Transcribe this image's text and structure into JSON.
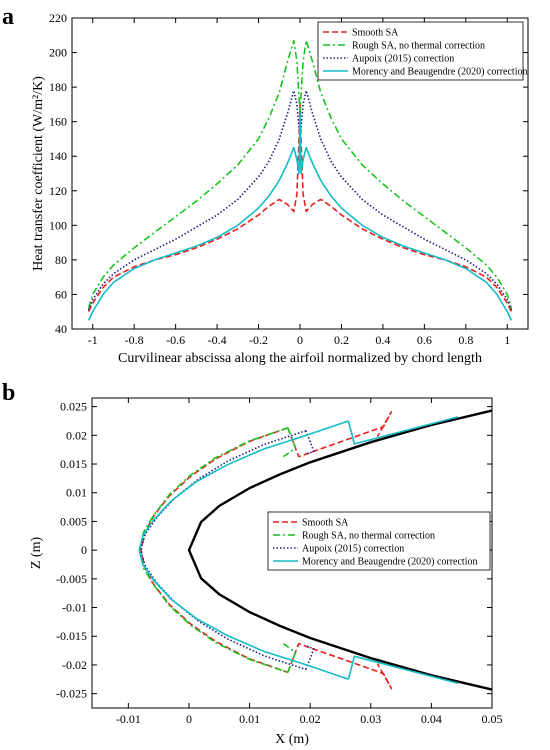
{
  "chart_data": [
    {
      "panel": "a",
      "type": "line",
      "xlabel": "Curvilinear abscissa along the airfoil normalized by chord length",
      "ylabel": "Heat transfer coefficient (W/m²/K)",
      "xlim": [
        -1.1,
        1.1
      ],
      "ylim": [
        40,
        220
      ],
      "xticks": [
        "-1",
        "-0.8",
        "-0.6",
        "-0.4",
        "-0.2",
        "0",
        "0.2",
        "0.4",
        "0.6",
        "0.8",
        "1"
      ],
      "yticks": [
        "40",
        "60",
        "80",
        "100",
        "120",
        "140",
        "160",
        "180",
        "200",
        "220"
      ],
      "legend_position": "top-right",
      "series": [
        {
          "name": "Smooth SA",
          "color": "#e8201c",
          "style": "dashed",
          "x": [
            -1.02,
            -1.0,
            -0.95,
            -0.9,
            -0.8,
            -0.7,
            -0.6,
            -0.5,
            -0.4,
            -0.3,
            -0.2,
            -0.15,
            -0.1,
            -0.06,
            -0.03,
            -0.015,
            -0.005,
            0.0,
            0.005,
            0.015,
            0.03,
            0.06,
            0.1,
            0.15,
            0.2,
            0.3,
            0.4,
            0.5,
            0.6,
            0.7,
            0.8,
            0.9,
            0.95,
            1.0,
            1.02
          ],
          "y": [
            50,
            55,
            64,
            70,
            76,
            80,
            83,
            87,
            92,
            98,
            106,
            111,
            115,
            112,
            108,
            118,
            150,
            170,
            150,
            118,
            108,
            112,
            115,
            111,
            106,
            98,
            92,
            87,
            83,
            80,
            76,
            70,
            64,
            55,
            50
          ]
        },
        {
          "name": "Rough SA, no thermal correction",
          "color": "#19c41e",
          "style": "dashdot",
          "x": [
            -1.02,
            -1.0,
            -0.95,
            -0.9,
            -0.8,
            -0.7,
            -0.6,
            -0.5,
            -0.4,
            -0.3,
            -0.2,
            -0.15,
            -0.1,
            -0.06,
            -0.03,
            -0.015,
            0.0,
            0.015,
            0.03,
            0.06,
            0.1,
            0.15,
            0.2,
            0.3,
            0.4,
            0.5,
            0.6,
            0.7,
            0.8,
            0.9,
            0.95,
            1.0,
            1.02
          ],
          "y": [
            52,
            60,
            70,
            77,
            87,
            96,
            105,
            114,
            124,
            135,
            150,
            162,
            177,
            195,
            207,
            195,
            165,
            195,
            207,
            195,
            177,
            162,
            150,
            135,
            124,
            114,
            105,
            96,
            87,
            77,
            70,
            60,
            52
          ]
        },
        {
          "name": "Aupoix (2015) correction",
          "color": "#1a237e",
          "style": "dotted",
          "x": [
            -1.02,
            -1.0,
            -0.95,
            -0.9,
            -0.8,
            -0.7,
            -0.6,
            -0.5,
            -0.4,
            -0.3,
            -0.2,
            -0.15,
            -0.1,
            -0.06,
            -0.03,
            -0.015,
            0.0,
            0.015,
            0.03,
            0.06,
            0.1,
            0.15,
            0.2,
            0.3,
            0.4,
            0.5,
            0.6,
            0.7,
            0.8,
            0.9,
            0.95,
            1.0,
            1.02
          ],
          "y": [
            51,
            57,
            66,
            72,
            80,
            86,
            92,
            99,
            106,
            115,
            128,
            137,
            150,
            165,
            178,
            170,
            150,
            170,
            178,
            165,
            150,
            137,
            128,
            115,
            106,
            99,
            92,
            86,
            80,
            72,
            66,
            57,
            51
          ]
        },
        {
          "name": "Morency and Beaugendre (2020) correction",
          "color": "#14bcc6",
          "style": "solid",
          "x": [
            -1.02,
            -1.0,
            -0.95,
            -0.9,
            -0.8,
            -0.7,
            -0.6,
            -0.5,
            -0.4,
            -0.3,
            -0.2,
            -0.15,
            -0.1,
            -0.06,
            -0.03,
            -0.015,
            -0.005,
            0.0,
            0.005,
            0.015,
            0.03,
            0.06,
            0.1,
            0.15,
            0.2,
            0.3,
            0.4,
            0.5,
            0.6,
            0.7,
            0.8,
            0.9,
            0.95,
            1.0,
            1.02
          ],
          "y": [
            45,
            50,
            60,
            67,
            75,
            80,
            84,
            88,
            93,
            100,
            110,
            117,
            126,
            136,
            145,
            138,
            130,
            165,
            130,
            138,
            145,
            136,
            126,
            117,
            110,
            100,
            93,
            88,
            84,
            80,
            75,
            67,
            60,
            50,
            45
          ]
        }
      ]
    },
    {
      "panel": "b",
      "type": "line",
      "xlabel": "X (m)",
      "ylabel": "Z (m)",
      "xlim": [
        -0.016,
        0.05
      ],
      "ylim": [
        -0.0275,
        0.0265
      ],
      "xticks": [
        "-0.01",
        "0",
        "0.01",
        "0.02",
        "0.03",
        "0.04",
        "0.05"
      ],
      "yticks": [
        "-0.025",
        "-0.02",
        "-0.015",
        "-0.01",
        "-0.005",
        "0",
        "0.005",
        "0.01",
        "0.015",
        "0.02",
        "0.025"
      ],
      "legend_position": "center-right",
      "airfoil": {
        "color": "#000000",
        "x": [
          0.05,
          0.04,
          0.03,
          0.02,
          0.015,
          0.01,
          0.005,
          0.002,
          0.0,
          0.002,
          0.005,
          0.01,
          0.015,
          0.02,
          0.03,
          0.04,
          0.05
        ],
        "y": [
          0.0243,
          0.0218,
          0.0188,
          0.0153,
          0.0132,
          0.0108,
          0.0077,
          0.0049,
          0.0,
          -0.0049,
          -0.0077,
          -0.0108,
          -0.0132,
          -0.0153,
          -0.0188,
          -0.0218,
          -0.0243
        ]
      },
      "series": [
        {
          "name": "Smooth SA",
          "color": "#e8201c",
          "style": "dashed",
          "x": [
            0.0163,
            0.0099,
            0.0044,
            0.0003,
            -0.0032,
            -0.0058,
            -0.0073,
            -0.0079,
            -0.0073,
            -0.0058,
            -0.0032,
            0.0003,
            0.0044,
            0.0099,
            0.0163
          ],
          "y": [
            0.0213,
            0.0189,
            0.0159,
            0.0129,
            0.0095,
            0.006,
            0.003,
            0.0,
            -0.003,
            -0.006,
            -0.0095,
            -0.0129,
            -0.0159,
            -0.0189,
            -0.0213
          ],
          "upper_ridge_x": [
            0.0163,
            0.0181,
            0.0321,
            0.0334,
            0.0311
          ],
          "upper_ridge_y": [
            0.0213,
            0.0163,
            0.0215,
            0.0241,
            0.0198
          ],
          "lower_ridge_x": [
            0.0163,
            0.0181,
            0.0321,
            0.0334,
            0.0311
          ],
          "lower_ridge_y": [
            -0.0213,
            -0.0163,
            -0.0215,
            -0.0241,
            -0.0198
          ]
        },
        {
          "name": "Rough SA, no thermal correction",
          "color": "#19c41e",
          "style": "dashdot",
          "x": [
            0.0163,
            0.0099,
            0.0044,
            0.0003,
            -0.0032,
            -0.0058,
            -0.0075,
            -0.0082,
            -0.0075,
            -0.0058,
            -0.0032,
            0.0003,
            0.0044,
            0.0099,
            0.0163
          ],
          "y": [
            0.0213,
            0.019,
            0.0161,
            0.0131,
            0.0097,
            0.0061,
            0.0031,
            0.0,
            -0.0031,
            -0.0061,
            -0.0097,
            -0.0131,
            -0.0161,
            -0.019,
            -0.0213
          ],
          "upper_ridge_x": [
            0.0163,
            0.0176,
            0.0156
          ],
          "upper_ridge_y": [
            0.0213,
            0.0178,
            0.0163
          ],
          "lower_ridge_x": [
            0.0163,
            0.0176,
            0.0156
          ],
          "lower_ridge_y": [
            -0.0213,
            -0.0178,
            -0.0163
          ]
        },
        {
          "name": "Aupoix (2015) correction",
          "color": "#1a237e",
          "style": "dotted",
          "x": [
            0.0193,
            0.0124,
            0.0064,
            0.0016,
            -0.0024,
            -0.0053,
            -0.0072,
            -0.008,
            -0.0072,
            -0.0053,
            -0.0024,
            0.0016,
            0.0064,
            0.0124,
            0.0193
          ],
          "y": [
            0.0208,
            0.0184,
            0.0155,
            0.0124,
            0.009,
            0.0057,
            0.0028,
            0.0,
            -0.0028,
            -0.0057,
            -0.009,
            -0.0124,
            -0.0155,
            -0.0184,
            -0.0208
          ],
          "upper_ridge_x": [
            0.0193,
            0.0206,
            0.0193
          ],
          "upper_ridge_y": [
            0.0208,
            0.0172,
            0.0167
          ],
          "lower_ridge_x": [
            0.0193,
            0.0206,
            0.0193
          ],
          "lower_ridge_y": [
            -0.0208,
            -0.0172,
            -0.0167
          ]
        },
        {
          "name": "Morency and Beaugendre (2020) correction",
          "color": "#14bcc6",
          "style": "solid",
          "x": [
            0.0263,
            0.0194,
            0.0123,
            0.0062,
            0.0012,
            -0.0029,
            -0.0058,
            -0.0076,
            -0.0082,
            -0.0076,
            -0.0058,
            -0.0029,
            0.0012,
            0.0062,
            0.0123,
            0.0194,
            0.0263
          ],
          "y": [
            0.0225,
            0.02,
            0.0176,
            0.0148,
            0.0119,
            0.0086,
            0.0053,
            0.0025,
            0.0,
            -0.0025,
            -0.0053,
            -0.0086,
            -0.0119,
            -0.0148,
            -0.0176,
            -0.02,
            -0.0225
          ],
          "upper_ridge_x": [
            0.0263,
            0.0273,
            0.0444
          ],
          "upper_ridge_y": [
            0.0225,
            0.0185,
            0.0232
          ],
          "lower_ridge_x": [
            0.0263,
            0.0273,
            0.0444
          ],
          "lower_ridge_y": [
            -0.0225,
            -0.0185,
            -0.0232
          ]
        }
      ]
    }
  ]
}
